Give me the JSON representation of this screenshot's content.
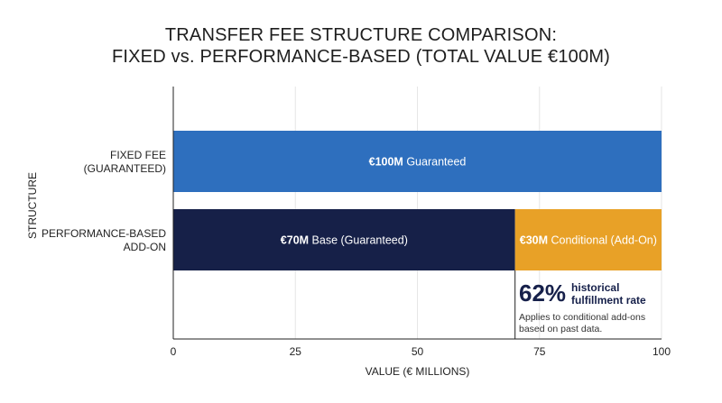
{
  "chart_data": {
    "type": "bar",
    "orientation": "horizontal",
    "stacked": true,
    "title_lines": [
      "TRANSFER FEE STRUCTURE COMPARISON:",
      "FIXED vs. PERFORMANCE-BASED (TOTAL VALUE €100M)"
    ],
    "xlabel": "VALUE (€ MILLIONS)",
    "ylabel": "STRUCTURE",
    "xlim": [
      0,
      100
    ],
    "xticks": [
      0,
      25,
      50,
      75,
      100
    ],
    "grid": true,
    "categories": [
      {
        "label_lines": [
          "FIXED FEE",
          "(GUARANTEED)"
        ]
      },
      {
        "label_lines": [
          "PERFORMANCE-BASED",
          "ADD-ON"
        ]
      }
    ],
    "bars": [
      [
        {
          "start": 0,
          "value": 100,
          "color": "#2e6fbe",
          "label_bold": "€100M",
          "label_rest": " Guaranteed"
        }
      ],
      [
        {
          "start": 0,
          "value": 70,
          "color": "#162048",
          "label_bold": "€70M",
          "label_rest": " Base (Guaranteed)"
        },
        {
          "start": 70,
          "value": 30,
          "color": "#e8a127",
          "label_bold": "€30M",
          "label_rest": " Conditional (Add-On)"
        }
      ]
    ],
    "annotation": {
      "big": "62%",
      "headline": "historical fulfillment rate",
      "note": "Applies to conditional add-ons based on past data.",
      "anchor_x": 70
    }
  }
}
